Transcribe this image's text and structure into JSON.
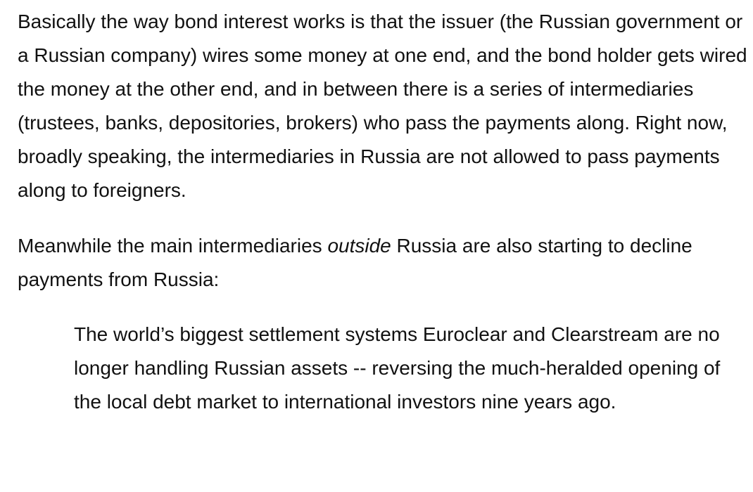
{
  "paragraphs": [
    {
      "text": "Basically the way bond interest works is that the issuer (the Russian government or a Russian company) wires some money at one end, and the bond holder gets wired the money at the other end, and in between there is a series of intermediaries (trustees, banks, depositories, brokers) who pass the payments along. Right now, broadly speaking, the intermediaries in Russia are not allowed to pass payments along to foreigners."
    },
    {
      "before": "Meanwhile the main intermediaries ",
      "emphasis": "outside",
      "after": " Russia are also starting to decline payments from Russia:"
    }
  ],
  "blockquote": {
    "text": "The world’s biggest settlement systems Euroclear and Clearstream are no longer handling Russian assets -- reversing the much-heralded opening of the local debt market to international investors nine years ago."
  }
}
